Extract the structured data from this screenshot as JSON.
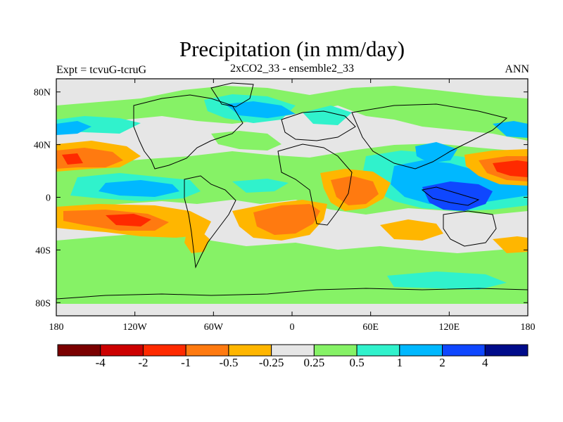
{
  "header": {
    "title": "Precipitation (in mm/day)",
    "subtitle": "2xCO2_33 - ensemble2_33",
    "left_label": "Expt = tcvuG-tcruG",
    "right_label": "ANN"
  },
  "axes": {
    "lon_ticks": [
      "180",
      "120W",
      "60W",
      "0",
      "60E",
      "120E",
      "180"
    ],
    "lat_ticks": [
      "80N",
      "40N",
      "0",
      "40S",
      "80S"
    ]
  },
  "colorbar": {
    "colors": [
      "#7a0000",
      "#cc0000",
      "#ff2a00",
      "#ff7a10",
      "#ffb600",
      "#e6e6e6",
      "#86f266",
      "#30f2cc",
      "#00b8ff",
      "#0f47ff",
      "#000b8a"
    ],
    "labels": [
      "-4",
      "-2",
      "-1",
      "-0.5",
      "-0.25",
      "0.25",
      "0.5",
      "1",
      "2",
      "4"
    ]
  },
  "colors": {
    "neutral": "#e6e6e6",
    "light_green": "#86f266",
    "cyan": "#30f2cc",
    "blue": "#00b8ff",
    "dark_blue": "#0f47ff",
    "orange": "#ff7a10",
    "amber": "#ffb600",
    "red": "#ff2a00"
  }
}
